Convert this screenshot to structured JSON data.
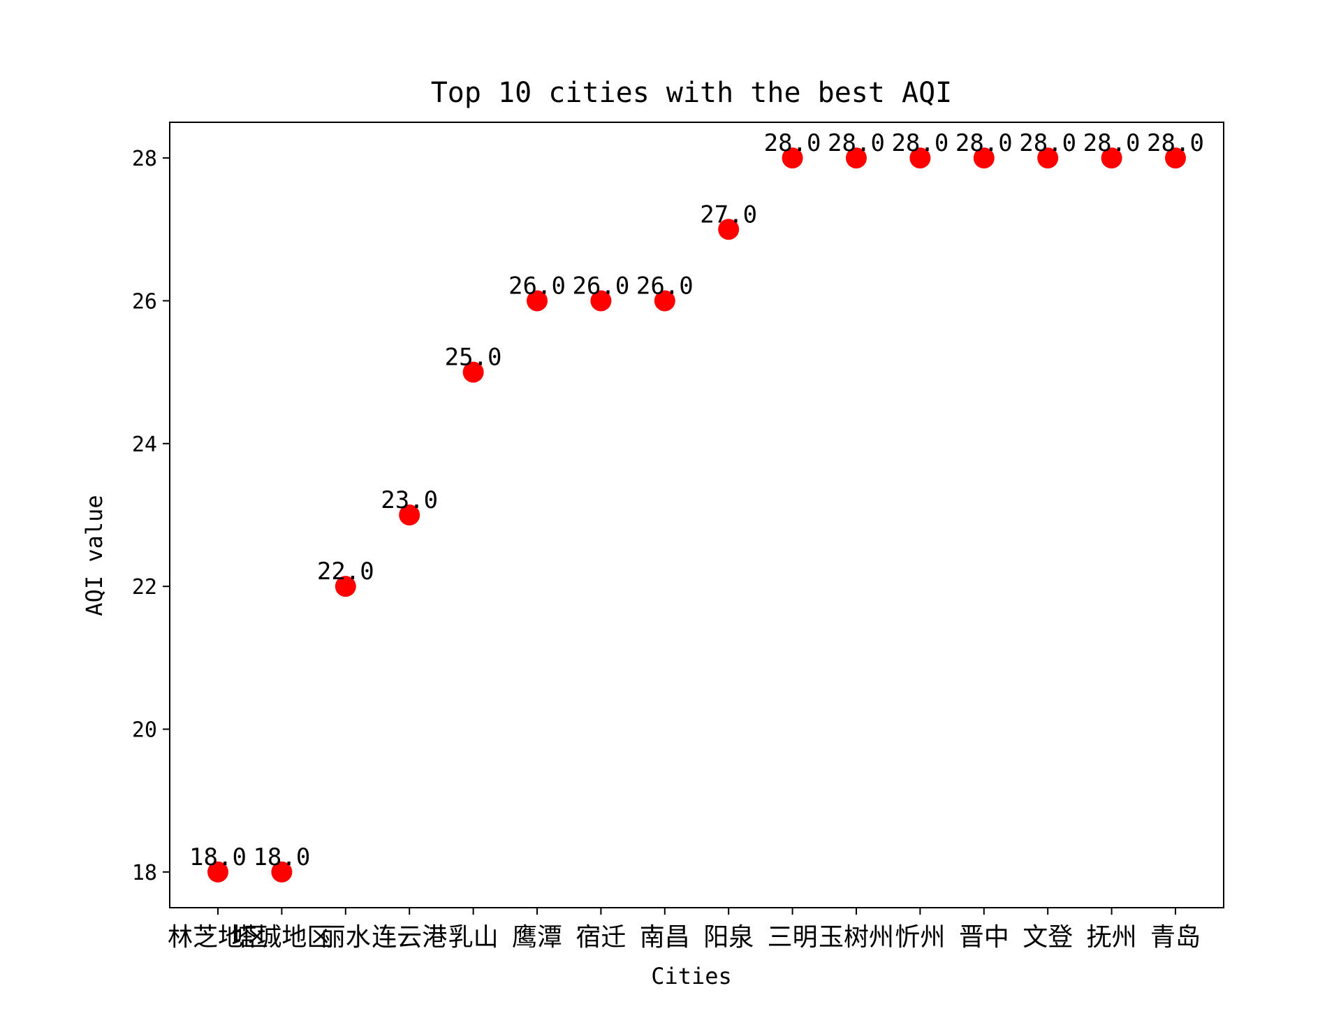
{
  "chart_data": {
    "type": "scatter",
    "title": "Top 10 cities with the best AQI",
    "xlabel": "Cities",
    "ylabel": "AQI value",
    "ylim": [
      17.5,
      28.5
    ],
    "yticks": [
      18,
      20,
      22,
      24,
      26,
      28
    ],
    "grid": false,
    "marker_color": "#ff0000",
    "categories": [
      "林芝地区",
      "塔城地区",
      "丽水",
      "连云港",
      "乳山",
      "鹰潭",
      "宿迁",
      "南昌",
      "阳泉",
      "三明",
      "玉树州",
      "忻州",
      "晋中",
      "文登",
      "抚州",
      "青岛"
    ],
    "values": [
      18,
      18,
      22,
      23,
      25,
      26,
      26,
      26,
      27,
      28,
      28,
      28,
      28,
      28,
      28,
      28
    ],
    "data_labels": [
      "18.0",
      "18.0",
      "22.0",
      "23.0",
      "25.0",
      "26.0",
      "26.0",
      "26.0",
      "27.0",
      "28.0",
      "28.0",
      "28.0",
      "28.0",
      "28.0",
      "28.0",
      "28.0"
    ]
  }
}
